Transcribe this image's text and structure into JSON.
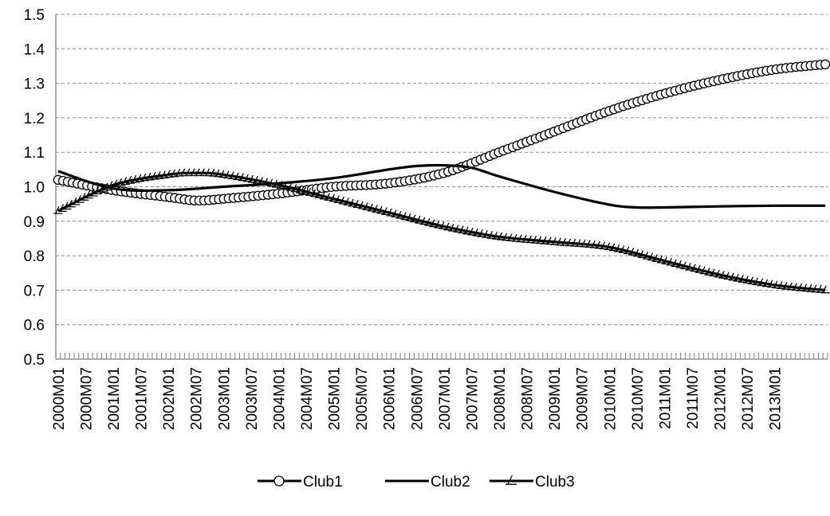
{
  "chart_data": {
    "type": "line",
    "title": "",
    "xlabel": "",
    "ylabel": "",
    "ylim": [
      0.5,
      1.5
    ],
    "yticks": [
      "0.5",
      "0.6",
      "0.7",
      "0.8",
      "0.9",
      "1.0",
      "1.1",
      "1.2",
      "1.3",
      "1.4",
      "1.5"
    ],
    "x_range_months": [
      "2000M01",
      "2013M12"
    ],
    "x_tick_labels": [
      "2000M01",
      "2000M07",
      "2001M01",
      "2001M07",
      "2002M01",
      "2002M07",
      "2003M01",
      "2003M07",
      "2004M01",
      "2004M07",
      "2005M01",
      "2005M07",
      "2006M01",
      "2006M07",
      "2007M01",
      "2007M07",
      "2008M01",
      "2008M07",
      "2009M01",
      "2009M07",
      "2010M01",
      "2010M07",
      "2011M01",
      "2011M07",
      "2012M01",
      "2012M07",
      "2013M01"
    ],
    "grid": "horizontal dashed",
    "legend_position": "bottom",
    "series": [
      {
        "name": "Club1",
        "marker": "circle",
        "x": [
          "2000M01",
          "2001M01",
          "2002M01",
          "2002M07",
          "2003M01",
          "2004M01",
          "2005M01",
          "2006M01",
          "2007M01",
          "2008M01",
          "2009M01",
          "2010M01",
          "2011M01",
          "2012M01",
          "2013M01",
          "2013M12"
        ],
        "y": [
          1.02,
          0.99,
          0.97,
          0.96,
          0.965,
          0.98,
          1.0,
          1.01,
          1.04,
          1.1,
          1.16,
          1.22,
          1.27,
          1.31,
          1.34,
          1.355
        ]
      },
      {
        "name": "Club2",
        "marker": "none",
        "x": [
          "2000M01",
          "2001M01",
          "2002M01",
          "2003M01",
          "2004M01",
          "2005M01",
          "2006M01",
          "2006M07",
          "2007M01",
          "2007M07",
          "2008M01",
          "2009M01",
          "2010M01",
          "2010M07",
          "2011M01",
          "2012M01",
          "2013M01",
          "2013M12"
        ],
        "y": [
          1.045,
          0.995,
          0.99,
          1.0,
          1.01,
          1.025,
          1.05,
          1.06,
          1.062,
          1.055,
          1.03,
          0.985,
          0.948,
          0.94,
          0.94,
          0.943,
          0.945,
          0.945
        ]
      },
      {
        "name": "Club3",
        "marker": "triangle",
        "x": [
          "2000M01",
          "2001M01",
          "2002M01",
          "2002M07",
          "2003M01",
          "2004M01",
          "2005M01",
          "2006M01",
          "2007M01",
          "2008M01",
          "2009M01",
          "2010M01",
          "2011M01",
          "2012M01",
          "2013M01",
          "2013M12"
        ],
        "y": [
          0.93,
          1.005,
          1.035,
          1.04,
          1.035,
          1.005,
          0.965,
          0.925,
          0.885,
          0.855,
          0.84,
          0.825,
          0.785,
          0.745,
          0.715,
          0.7
        ]
      }
    ]
  },
  "legend": {
    "items": [
      "Club1",
      "Club2",
      "Club3"
    ]
  }
}
